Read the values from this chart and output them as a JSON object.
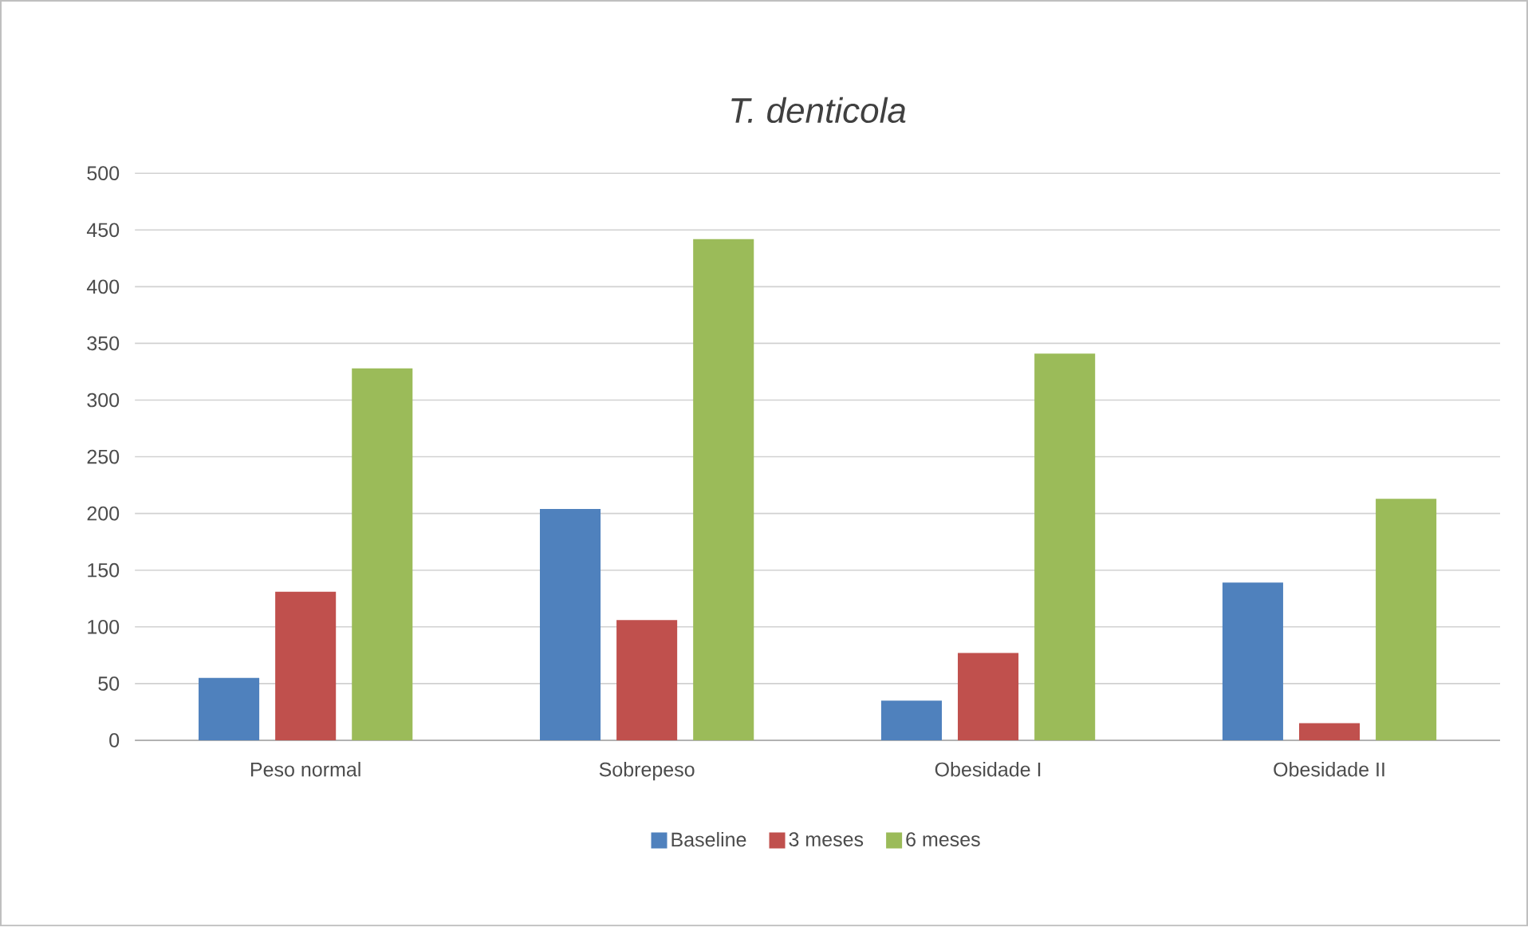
{
  "chart_data": {
    "type": "bar",
    "title": "T. denticola",
    "categories": [
      "Peso normal",
      "Sobrepeso",
      "Obesidade I",
      "Obesidade II"
    ],
    "series": [
      {
        "name": "Baseline",
        "color": "#4f81bd",
        "values": [
          55,
          204,
          35,
          139
        ]
      },
      {
        "name": "3 meses",
        "color": "#c0504d",
        "values": [
          131,
          106,
          77,
          15
        ]
      },
      {
        "name": "6 meses",
        "color": "#9bbb59",
        "values": [
          328,
          442,
          341,
          213
        ]
      }
    ],
    "ylim": [
      0,
      500
    ],
    "yticks": [
      0,
      50,
      100,
      150,
      200,
      250,
      300,
      350,
      400,
      450,
      500
    ],
    "grid": "y",
    "legend": "bottom"
  }
}
